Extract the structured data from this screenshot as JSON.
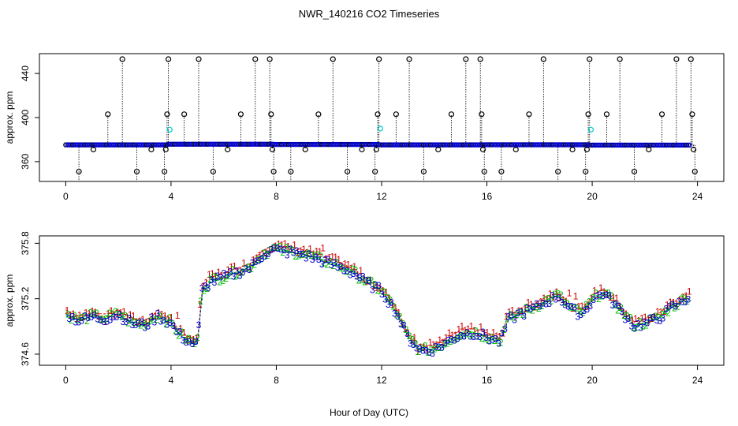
{
  "title": "NWR_140216  CO2 Timeseries",
  "xlabel": "Hour of Day (UTC)",
  "colors": {
    "black": "#000000",
    "blue": "#0000cc",
    "red": "#cc0000",
    "green": "#00bb00",
    "cyan": "#00cccc"
  },
  "chart_data": [
    {
      "type": "scatter",
      "name": "top-panel",
      "ylabel": "approx. ppm",
      "xlim": [
        -1.0,
        25.0
      ],
      "ylim": [
        342,
        458
      ],
      "xticks": [
        0,
        4,
        8,
        12,
        16,
        20,
        24
      ],
      "yticks": [
        360,
        400,
        440
      ],
      "baseline": {
        "x_start": 0.0,
        "x_end": 23.75,
        "segments": [
          {
            "x0": 0.0,
            "x1": 3.9,
            "y": 375.2
          },
          {
            "x0": 3.9,
            "x1": 7.9,
            "y": 375.8
          },
          {
            "x0": 7.9,
            "x1": 11.9,
            "y": 375.6
          },
          {
            "x0": 11.9,
            "x1": 15.9,
            "y": 375.2
          },
          {
            "x0": 15.9,
            "x1": 19.9,
            "y": 375.3
          },
          {
            "x0": 19.9,
            "x1": 23.75,
            "y": 375.0
          }
        ]
      },
      "outliers": [
        {
          "x": 0.5,
          "y": 351
        },
        {
          "x": 1.05,
          "y": 371
        },
        {
          "x": 1.6,
          "y": 403
        },
        {
          "x": 2.15,
          "y": 453
        },
        {
          "x": 2.7,
          "y": 351
        },
        {
          "x": 3.25,
          "y": 371
        },
        {
          "x": 3.75,
          "y": 351
        },
        {
          "x": 3.8,
          "y": 371
        },
        {
          "x": 3.85,
          "y": 403
        },
        {
          "x": 3.9,
          "y": 453
        },
        {
          "x": 4.5,
          "y": 403
        },
        {
          "x": 5.05,
          "y": 453
        },
        {
          "x": 5.6,
          "y": 351
        },
        {
          "x": 6.15,
          "y": 371
        },
        {
          "x": 6.65,
          "y": 403
        },
        {
          "x": 7.2,
          "y": 453
        },
        {
          "x": 7.75,
          "y": 453
        },
        {
          "x": 7.8,
          "y": 403
        },
        {
          "x": 7.85,
          "y": 371
        },
        {
          "x": 7.9,
          "y": 351
        },
        {
          "x": 8.55,
          "y": 351
        },
        {
          "x": 9.1,
          "y": 371
        },
        {
          "x": 9.6,
          "y": 403
        },
        {
          "x": 10.15,
          "y": 453
        },
        {
          "x": 10.7,
          "y": 351
        },
        {
          "x": 11.25,
          "y": 371
        },
        {
          "x": 11.75,
          "y": 351
        },
        {
          "x": 11.8,
          "y": 371
        },
        {
          "x": 11.85,
          "y": 403
        },
        {
          "x": 11.9,
          "y": 453
        },
        {
          "x": 12.55,
          "y": 403
        },
        {
          "x": 13.05,
          "y": 453
        },
        {
          "x": 13.6,
          "y": 351
        },
        {
          "x": 14.15,
          "y": 371
        },
        {
          "x": 14.65,
          "y": 403
        },
        {
          "x": 15.2,
          "y": 453
        },
        {
          "x": 15.75,
          "y": 453
        },
        {
          "x": 15.8,
          "y": 403
        },
        {
          "x": 15.85,
          "y": 371
        },
        {
          "x": 15.9,
          "y": 351
        },
        {
          "x": 16.55,
          "y": 351
        },
        {
          "x": 17.1,
          "y": 371
        },
        {
          "x": 17.6,
          "y": 403
        },
        {
          "x": 18.15,
          "y": 453
        },
        {
          "x": 18.7,
          "y": 351
        },
        {
          "x": 19.25,
          "y": 371
        },
        {
          "x": 19.75,
          "y": 351
        },
        {
          "x": 19.8,
          "y": 371
        },
        {
          "x": 19.85,
          "y": 403
        },
        {
          "x": 19.9,
          "y": 453
        },
        {
          "x": 20.55,
          "y": 403
        },
        {
          "x": 21.05,
          "y": 453
        },
        {
          "x": 21.6,
          "y": 351
        },
        {
          "x": 22.15,
          "y": 371
        },
        {
          "x": 22.65,
          "y": 403
        },
        {
          "x": 23.2,
          "y": 453
        },
        {
          "x": 23.75,
          "y": 453
        },
        {
          "x": 23.8,
          "y": 403
        },
        {
          "x": 23.85,
          "y": 371
        },
        {
          "x": 23.9,
          "y": 351
        }
      ],
      "cyan_points": [
        {
          "x": 3.95,
          "y": 389
        },
        {
          "x": 11.95,
          "y": 390
        },
        {
          "x": 19.95,
          "y": 389
        }
      ]
    },
    {
      "type": "scatter",
      "name": "bottom-panel",
      "ylabel": "approx. ppm",
      "xlim": [
        -1.0,
        25.0
      ],
      "ylim": [
        374.48,
        375.88
      ],
      "xticks": [
        0,
        4,
        8,
        12,
        16,
        20,
        24
      ],
      "yticks": [
        374.6,
        375.2,
        375.8
      ],
      "ytick_labels": [
        "374.6",
        "375.2",
        "375.8"
      ],
      "series_markers": [
        "1",
        "2",
        "3"
      ],
      "series": [
        {
          "name": "1",
          "color": "red"
        },
        {
          "name": "2",
          "color": "green"
        },
        {
          "name": "3",
          "color": "blue"
        }
      ],
      "trend": [
        {
          "x": 0.0,
          "y": 375.05
        },
        {
          "x": 0.5,
          "y": 374.98
        },
        {
          "x": 1.0,
          "y": 375.02
        },
        {
          "x": 1.5,
          "y": 375.0
        },
        {
          "x": 2.0,
          "y": 375.05
        },
        {
          "x": 2.5,
          "y": 374.95
        },
        {
          "x": 3.0,
          "y": 374.93
        },
        {
          "x": 3.5,
          "y": 375.03
        },
        {
          "x": 4.0,
          "y": 374.95
        },
        {
          "x": 4.3,
          "y": 374.83
        },
        {
          "x": 4.7,
          "y": 374.75
        },
        {
          "x": 5.0,
          "y": 374.72
        },
        {
          "x": 5.15,
          "y": 375.3
        },
        {
          "x": 5.5,
          "y": 375.4
        },
        {
          "x": 6.0,
          "y": 375.45
        },
        {
          "x": 6.5,
          "y": 375.5
        },
        {
          "x": 7.0,
          "y": 375.55
        },
        {
          "x": 7.5,
          "y": 375.7
        },
        {
          "x": 7.9,
          "y": 375.75
        },
        {
          "x": 8.2,
          "y": 375.73
        },
        {
          "x": 8.6,
          "y": 375.72
        },
        {
          "x": 9.0,
          "y": 375.7
        },
        {
          "x": 9.5,
          "y": 375.65
        },
        {
          "x": 10.0,
          "y": 375.6
        },
        {
          "x": 10.5,
          "y": 375.55
        },
        {
          "x": 11.0,
          "y": 375.48
        },
        {
          "x": 11.5,
          "y": 375.38
        },
        {
          "x": 12.0,
          "y": 375.3
        },
        {
          "x": 12.5,
          "y": 375.1
        },
        {
          "x": 13.0,
          "y": 374.8
        },
        {
          "x": 13.5,
          "y": 374.65
        },
        {
          "x": 14.0,
          "y": 374.67
        },
        {
          "x": 14.5,
          "y": 374.75
        },
        {
          "x": 15.0,
          "y": 374.83
        },
        {
          "x": 15.5,
          "y": 374.85
        },
        {
          "x": 16.0,
          "y": 374.8
        },
        {
          "x": 16.5,
          "y": 374.75
        },
        {
          "x": 16.8,
          "y": 374.98
        },
        {
          "x": 17.2,
          "y": 375.05
        },
        {
          "x": 17.7,
          "y": 375.1
        },
        {
          "x": 18.2,
          "y": 375.18
        },
        {
          "x": 18.7,
          "y": 375.25
        },
        {
          "x": 19.2,
          "y": 375.1
        },
        {
          "x": 19.6,
          "y": 375.05
        },
        {
          "x": 20.0,
          "y": 375.2
        },
        {
          "x": 20.4,
          "y": 375.28
        },
        {
          "x": 20.8,
          "y": 375.18
        },
        {
          "x": 21.2,
          "y": 375.05
        },
        {
          "x": 21.6,
          "y": 374.92
        },
        {
          "x": 22.0,
          "y": 374.95
        },
        {
          "x": 22.5,
          "y": 375.0
        },
        {
          "x": 23.0,
          "y": 375.12
        },
        {
          "x": 23.5,
          "y": 375.2
        },
        {
          "x": 23.7,
          "y": 375.25
        }
      ]
    }
  ]
}
